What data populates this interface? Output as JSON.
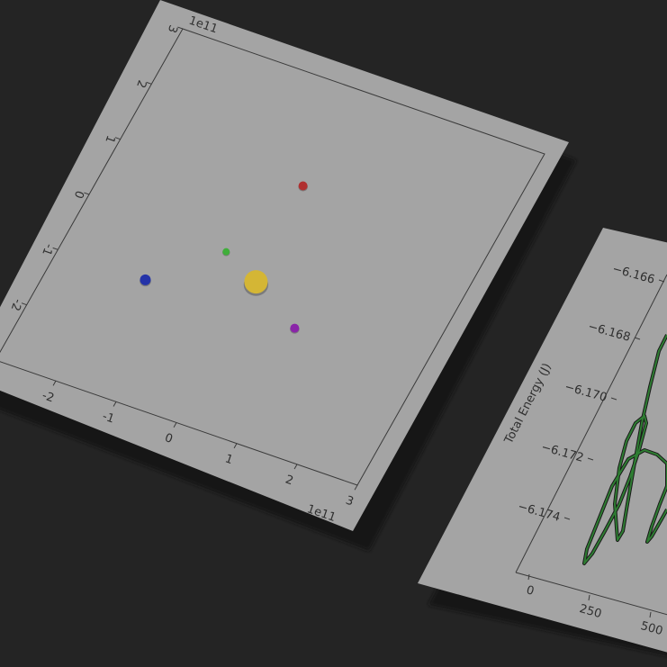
{
  "chart_data": [
    {
      "type": "scatter",
      "title": "",
      "xlabel": "",
      "ylabel": "",
      "x_offset_label": "1e11",
      "y_offset_label": "1e11",
      "xlim": [
        -3,
        3
      ],
      "ylim": [
        -3,
        3
      ],
      "x_ticks": [
        "-2",
        "-1",
        "0",
        "1",
        "2",
        "3"
      ],
      "y_ticks": [
        "-2",
        "-1",
        "0",
        "1",
        "2",
        "3"
      ],
      "grid": false,
      "series": [
        {
          "x": -0.1,
          "y": 1.25,
          "size": 5,
          "color": "#b03030"
        },
        {
          "x": -0.65,
          "y": -0.15,
          "size": 4,
          "color": "#3fae3a"
        },
        {
          "x": 0.0,
          "y": -0.45,
          "size": 13,
          "color": "#d4b635"
        },
        {
          "x": -1.55,
          "y": -1.0,
          "size": 6,
          "color": "#2433a8"
        },
        {
          "x": 0.9,
          "y": -0.95,
          "size": 5,
          "color": "#8a25a8"
        }
      ]
    },
    {
      "type": "line",
      "title": "",
      "xlabel": "",
      "ylabel": "Total Energy (J)",
      "x_ticks": [
        "0",
        "250",
        "500"
      ],
      "y_ticks": [
        "−6.166",
        "−6.168",
        "−6.170",
        "−6.172",
        "−6.174"
      ],
      "line_color": "#2e7d32",
      "grid": false
    }
  ]
}
